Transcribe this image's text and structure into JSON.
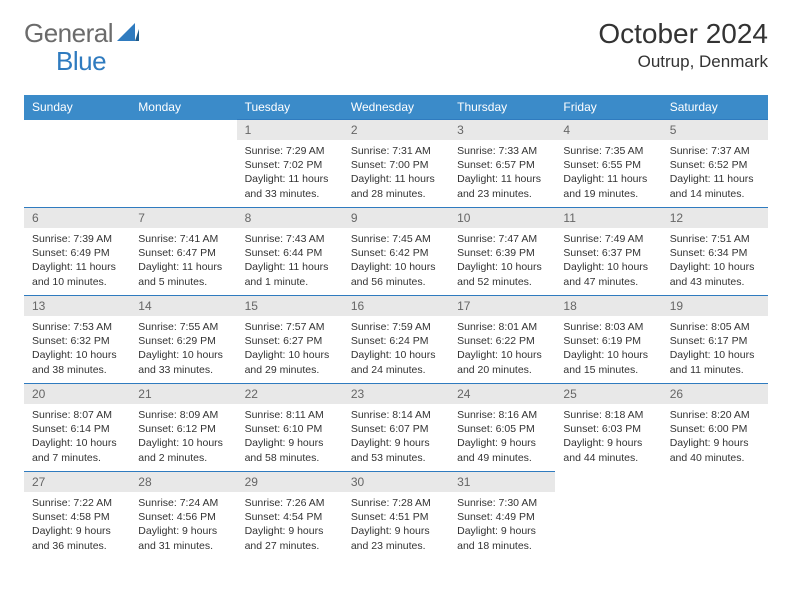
{
  "brand": {
    "part1": "General",
    "part2": "Blue"
  },
  "title": "October 2024",
  "location": "Outrup, Denmark",
  "colors": {
    "header_bg": "#3b8bc9",
    "header_text": "#ffffff",
    "daynum_bg": "#e8e8e8",
    "daynum_text": "#666666",
    "body_text": "#333333",
    "rule": "#2f7bbf",
    "logo_gray": "#6b6b6b",
    "logo_blue": "#2f7bbf"
  },
  "day_headers": [
    "Sunday",
    "Monday",
    "Tuesday",
    "Wednesday",
    "Thursday",
    "Friday",
    "Saturday"
  ],
  "weeks": [
    [
      null,
      null,
      {
        "n": "1",
        "sr": "Sunrise: 7:29 AM",
        "ss": "Sunset: 7:02 PM",
        "d1": "Daylight: 11 hours",
        "d2": "and 33 minutes."
      },
      {
        "n": "2",
        "sr": "Sunrise: 7:31 AM",
        "ss": "Sunset: 7:00 PM",
        "d1": "Daylight: 11 hours",
        "d2": "and 28 minutes."
      },
      {
        "n": "3",
        "sr": "Sunrise: 7:33 AM",
        "ss": "Sunset: 6:57 PM",
        "d1": "Daylight: 11 hours",
        "d2": "and 23 minutes."
      },
      {
        "n": "4",
        "sr": "Sunrise: 7:35 AM",
        "ss": "Sunset: 6:55 PM",
        "d1": "Daylight: 11 hours",
        "d2": "and 19 minutes."
      },
      {
        "n": "5",
        "sr": "Sunrise: 7:37 AM",
        "ss": "Sunset: 6:52 PM",
        "d1": "Daylight: 11 hours",
        "d2": "and 14 minutes."
      }
    ],
    [
      {
        "n": "6",
        "sr": "Sunrise: 7:39 AM",
        "ss": "Sunset: 6:49 PM",
        "d1": "Daylight: 11 hours",
        "d2": "and 10 minutes."
      },
      {
        "n": "7",
        "sr": "Sunrise: 7:41 AM",
        "ss": "Sunset: 6:47 PM",
        "d1": "Daylight: 11 hours",
        "d2": "and 5 minutes."
      },
      {
        "n": "8",
        "sr": "Sunrise: 7:43 AM",
        "ss": "Sunset: 6:44 PM",
        "d1": "Daylight: 11 hours",
        "d2": "and 1 minute."
      },
      {
        "n": "9",
        "sr": "Sunrise: 7:45 AM",
        "ss": "Sunset: 6:42 PM",
        "d1": "Daylight: 10 hours",
        "d2": "and 56 minutes."
      },
      {
        "n": "10",
        "sr": "Sunrise: 7:47 AM",
        "ss": "Sunset: 6:39 PM",
        "d1": "Daylight: 10 hours",
        "d2": "and 52 minutes."
      },
      {
        "n": "11",
        "sr": "Sunrise: 7:49 AM",
        "ss": "Sunset: 6:37 PM",
        "d1": "Daylight: 10 hours",
        "d2": "and 47 minutes."
      },
      {
        "n": "12",
        "sr": "Sunrise: 7:51 AM",
        "ss": "Sunset: 6:34 PM",
        "d1": "Daylight: 10 hours",
        "d2": "and 43 minutes."
      }
    ],
    [
      {
        "n": "13",
        "sr": "Sunrise: 7:53 AM",
        "ss": "Sunset: 6:32 PM",
        "d1": "Daylight: 10 hours",
        "d2": "and 38 minutes."
      },
      {
        "n": "14",
        "sr": "Sunrise: 7:55 AM",
        "ss": "Sunset: 6:29 PM",
        "d1": "Daylight: 10 hours",
        "d2": "and 33 minutes."
      },
      {
        "n": "15",
        "sr": "Sunrise: 7:57 AM",
        "ss": "Sunset: 6:27 PM",
        "d1": "Daylight: 10 hours",
        "d2": "and 29 minutes."
      },
      {
        "n": "16",
        "sr": "Sunrise: 7:59 AM",
        "ss": "Sunset: 6:24 PM",
        "d1": "Daylight: 10 hours",
        "d2": "and 24 minutes."
      },
      {
        "n": "17",
        "sr": "Sunrise: 8:01 AM",
        "ss": "Sunset: 6:22 PM",
        "d1": "Daylight: 10 hours",
        "d2": "and 20 minutes."
      },
      {
        "n": "18",
        "sr": "Sunrise: 8:03 AM",
        "ss": "Sunset: 6:19 PM",
        "d1": "Daylight: 10 hours",
        "d2": "and 15 minutes."
      },
      {
        "n": "19",
        "sr": "Sunrise: 8:05 AM",
        "ss": "Sunset: 6:17 PM",
        "d1": "Daylight: 10 hours",
        "d2": "and 11 minutes."
      }
    ],
    [
      {
        "n": "20",
        "sr": "Sunrise: 8:07 AM",
        "ss": "Sunset: 6:14 PM",
        "d1": "Daylight: 10 hours",
        "d2": "and 7 minutes."
      },
      {
        "n": "21",
        "sr": "Sunrise: 8:09 AM",
        "ss": "Sunset: 6:12 PM",
        "d1": "Daylight: 10 hours",
        "d2": "and 2 minutes."
      },
      {
        "n": "22",
        "sr": "Sunrise: 8:11 AM",
        "ss": "Sunset: 6:10 PM",
        "d1": "Daylight: 9 hours",
        "d2": "and 58 minutes."
      },
      {
        "n": "23",
        "sr": "Sunrise: 8:14 AM",
        "ss": "Sunset: 6:07 PM",
        "d1": "Daylight: 9 hours",
        "d2": "and 53 minutes."
      },
      {
        "n": "24",
        "sr": "Sunrise: 8:16 AM",
        "ss": "Sunset: 6:05 PM",
        "d1": "Daylight: 9 hours",
        "d2": "and 49 minutes."
      },
      {
        "n": "25",
        "sr": "Sunrise: 8:18 AM",
        "ss": "Sunset: 6:03 PM",
        "d1": "Daylight: 9 hours",
        "d2": "and 44 minutes."
      },
      {
        "n": "26",
        "sr": "Sunrise: 8:20 AM",
        "ss": "Sunset: 6:00 PM",
        "d1": "Daylight: 9 hours",
        "d2": "and 40 minutes."
      }
    ],
    [
      {
        "n": "27",
        "sr": "Sunrise: 7:22 AM",
        "ss": "Sunset: 4:58 PM",
        "d1": "Daylight: 9 hours",
        "d2": "and 36 minutes."
      },
      {
        "n": "28",
        "sr": "Sunrise: 7:24 AM",
        "ss": "Sunset: 4:56 PM",
        "d1": "Daylight: 9 hours",
        "d2": "and 31 minutes."
      },
      {
        "n": "29",
        "sr": "Sunrise: 7:26 AM",
        "ss": "Sunset: 4:54 PM",
        "d1": "Daylight: 9 hours",
        "d2": "and 27 minutes."
      },
      {
        "n": "30",
        "sr": "Sunrise: 7:28 AM",
        "ss": "Sunset: 4:51 PM",
        "d1": "Daylight: 9 hours",
        "d2": "and 23 minutes."
      },
      {
        "n": "31",
        "sr": "Sunrise: 7:30 AM",
        "ss": "Sunset: 4:49 PM",
        "d1": "Daylight: 9 hours",
        "d2": "and 18 minutes."
      },
      null,
      null
    ]
  ]
}
